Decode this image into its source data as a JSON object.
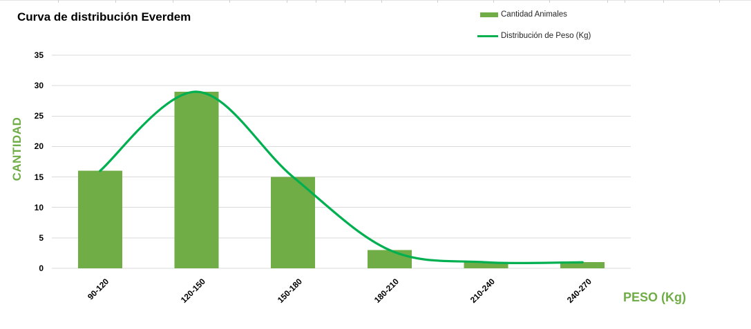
{
  "chart": {
    "legend_position": "top-right"
  },
  "chart_data": {
    "type": "combo",
    "title": "Curva de distribución Everdem",
    "xlabel": "PESO (Kg)",
    "ylabel": "CANTIDAD",
    "categories": [
      "90-120",
      "120-150",
      "150-180",
      "180-210",
      "210-240",
      "240-270"
    ],
    "series": [
      {
        "name": "Cantidad Animales",
        "type": "bar",
        "color": "#70AD47",
        "values": [
          16,
          29,
          15,
          3,
          1,
          1
        ]
      },
      {
        "name": "Distribución de Peso (Kg)",
        "type": "line",
        "color": "#00B050",
        "values": [
          16,
          29,
          15,
          3,
          1,
          1
        ]
      }
    ],
    "ylim": [
      0,
      35
    ],
    "yticks": [
      0,
      5,
      10,
      15,
      20,
      25,
      30,
      35
    ],
    "grid": "horizontal",
    "legend_position": "top-right",
    "colors": {
      "bar": "#70AD47",
      "line": "#00B050",
      "grid": "#D9D9D9",
      "axis_title": "#70AD47",
      "tick_text": "#000000",
      "title_text": "#000000",
      "legend_text": "#262626"
    }
  }
}
